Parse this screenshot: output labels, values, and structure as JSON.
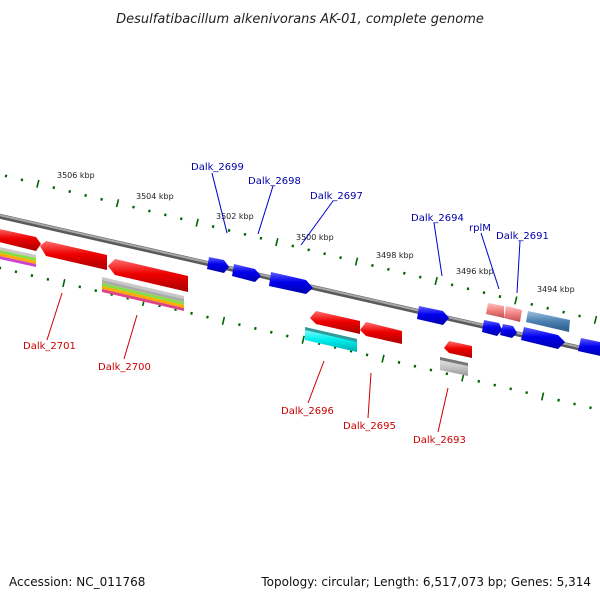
{
  "title": "Desulfatibacillum alkenivorans AK-01, complete genome",
  "accession": "Accession: NC_011768",
  "summary": "Topology: circular; Length: 6,517,073 bp; Genes: 5,314",
  "colors": {
    "forward_gene": "#0000ee",
    "reverse_gene": "#ee0000",
    "backbone": "#808080",
    "tick": "#006600",
    "label_forward": "#0000aa",
    "label_reverse": "#cc0000"
  },
  "scale_ticks": [
    "3506 kbp",
    "3504 kbp",
    "3502 kbp",
    "3500 kbp",
    "3498 kbp",
    "3496 kbp",
    "3494 kbp"
  ],
  "labels": {
    "forward": [
      "Dalk_2699",
      "Dalk_2698",
      "Dalk_2697",
      "Dalk_2694",
      "rplM",
      "Dalk_2691"
    ],
    "reverse": [
      "Dalk_2701",
      "Dalk_2700",
      "Dalk_2696",
      "Dalk_2695",
      "Dalk_2693"
    ]
  }
}
